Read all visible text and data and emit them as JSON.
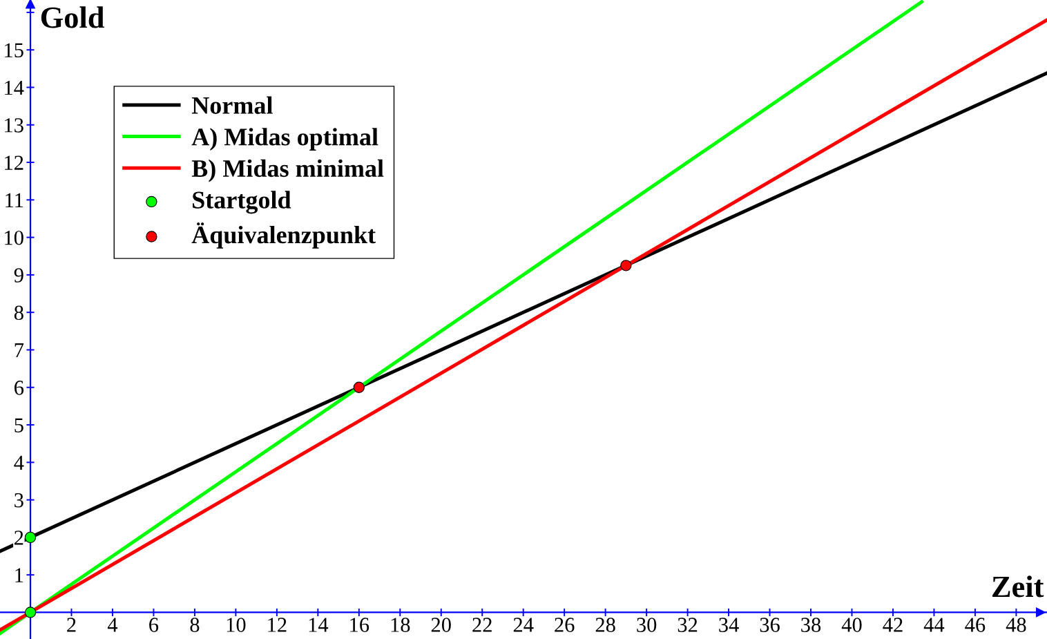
{
  "chart_data": {
    "type": "line",
    "xlabel": "Zeit",
    "ylabel": "Gold",
    "xlim": [
      -1.48,
      49.5
    ],
    "ylim": [
      -0.71,
      16.33
    ],
    "xticks": [
      2,
      4,
      6,
      8,
      10,
      12,
      14,
      16,
      18,
      20,
      22,
      24,
      26,
      28,
      30,
      32,
      34,
      36,
      38,
      40,
      42,
      44,
      46,
      48
    ],
    "yticks": [
      1,
      2,
      3,
      4,
      5,
      6,
      7,
      8,
      9,
      10,
      11,
      12,
      13,
      14,
      15,
      {
        "value": 16,
        "label": null
      }
    ],
    "grid": false,
    "legend": "top left",
    "line_style": "solid",
    "ref_lines": [
      {
        "axis": "x",
        "value": 0,
        "color": "#0000ff"
      }
    ],
    "series": [
      {
        "name": "Normal",
        "color": "#000000",
        "x": [
          -1.48,
          0,
          16,
          29,
          49.5
        ],
        "values": [
          1.63,
          2,
          6,
          9.25,
          14.38
        ]
      },
      {
        "name": "A) Midas optimal",
        "color": "#00ff00",
        "x": [
          -1.48,
          0,
          16,
          43.4
        ],
        "values": [
          -0.56,
          0,
          6,
          16.28
        ]
      },
      {
        "name": "B) Midas minimal",
        "color": "#ff0000",
        "x": [
          -1.48,
          0,
          29,
          49.5
        ],
        "values": [
          -0.47,
          0,
          9.25,
          15.8
        ]
      },
      {
        "name": "Startgold",
        "type": "scatter",
        "marker": "circle",
        "color": "#00ff00",
        "x": [
          0,
          0
        ],
        "values": [
          2,
          0
        ]
      },
      {
        "name": "Äquivalenzpunkt",
        "type": "scatter",
        "marker": "circle",
        "color": "#ff0000",
        "x": [
          16,
          29
        ],
        "values": [
          6,
          9.25
        ]
      }
    ]
  }
}
